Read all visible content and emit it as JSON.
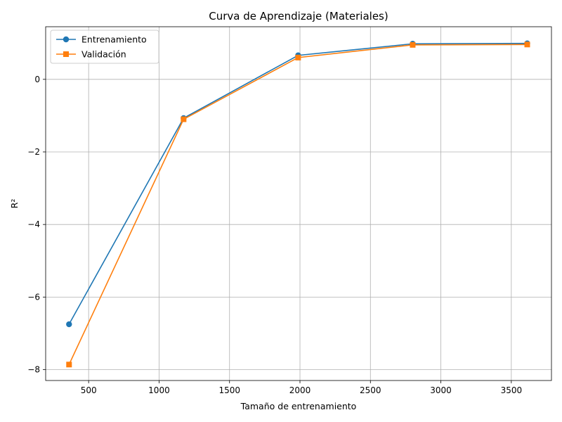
{
  "chart_data": {
    "type": "line",
    "title": "Curva de Aprendizaje (Materiales)",
    "xlabel": "Tamaño de entrenamiento",
    "ylabel": "R²",
    "xlim": [
      195,
      3785
    ],
    "ylim": [
      -8.3,
      1.45
    ],
    "xticks": [
      500,
      1000,
      1500,
      2000,
      2500,
      3000,
      3500
    ],
    "yticks": [
      -8,
      -6,
      -4,
      -2,
      0
    ],
    "xtick_labels": [
      "500",
      "1000",
      "1500",
      "2000",
      "2500",
      "3000",
      "3500"
    ],
    "ytick_labels": [
      "−8",
      "−6",
      "−4",
      "−2",
      "0"
    ],
    "grid": true,
    "legend_position": "top-left",
    "x": [
      361,
      1174,
      1987,
      2800,
      3613
    ],
    "series": [
      {
        "name": "Entrenamiento",
        "values": [
          -6.75,
          -1.07,
          0.66,
          0.98,
          0.99
        ],
        "color": "#1f77b4",
        "marker": "circle"
      },
      {
        "name": "Validación",
        "values": [
          -7.86,
          -1.1,
          0.6,
          0.95,
          0.96
        ],
        "color": "#ff7f0e",
        "marker": "square"
      }
    ]
  }
}
